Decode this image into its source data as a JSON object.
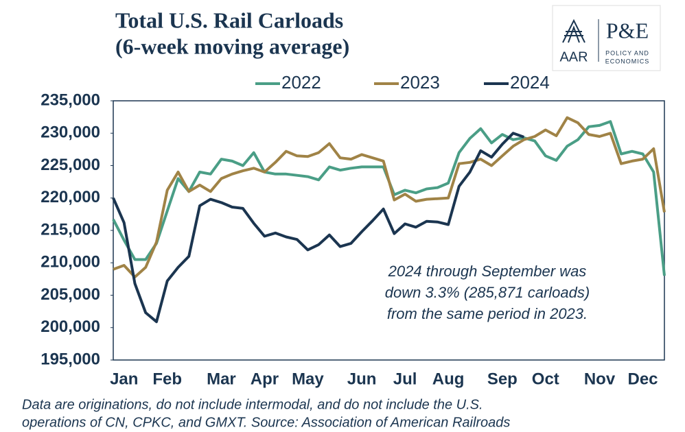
{
  "chart_data": {
    "type": "line",
    "title": "Total U.S. Rail Carloads",
    "subtitle": "(6-week moving average)",
    "logo": [
      "AAR",
      "P&E",
      "POLICY AND",
      "ECONOMICS"
    ],
    "annotation": [
      "2024 through September was",
      "down 3.3% (285,871 carloads)",
      "from the same period in 2023."
    ],
    "footnote": [
      "Data are originations, do not include intermodal, and do not include the U.S.",
      "operations of CN, CPKC, and GMXT. Source: Association of American Railroads"
    ],
    "categories": [
      null,
      "Jan",
      null,
      null,
      null,
      "Feb",
      null,
      null,
      null,
      null,
      "Mar",
      null,
      null,
      null,
      "Apr",
      null,
      null,
      null,
      "May",
      null,
      null,
      null,
      null,
      "Jun",
      null,
      null,
      null,
      "Jul",
      null,
      null,
      null,
      "Aug",
      null,
      null,
      null,
      null,
      "Sep",
      null,
      null,
      null,
      "Oct",
      null,
      null,
      null,
      null,
      "Nov",
      null,
      null,
      null,
      "Dec",
      null,
      null
    ],
    "series": [
      {
        "name": "2022",
        "color": "#4a9e86",
        "values": [
          216700,
          213500,
          210500,
          210500,
          213000,
          218000,
          223000,
          221000,
          224000,
          223700,
          226000,
          225700,
          225000,
          227000,
          224000,
          223700,
          223700,
          223500,
          223300,
          222800,
          224800,
          224300,
          224600,
          224800,
          224800,
          224800,
          220500,
          221200,
          220800,
          221400,
          221600,
          222300,
          227000,
          229200,
          230700,
          228500,
          229800,
          229000,
          229300,
          228800,
          226500,
          225800,
          228000,
          229000,
          231000,
          231200,
          231800,
          226800,
          227200,
          226800,
          224000,
          208000
        ]
      },
      {
        "name": "2023",
        "color": "#a08346",
        "values": [
          209000,
          209600,
          207800,
          209300,
          213200,
          221200,
          224000,
          221000,
          222000,
          221000,
          223000,
          223700,
          224200,
          224600,
          224000,
          225500,
          227200,
          226500,
          226400,
          227000,
          228400,
          226200,
          226000,
          226700,
          226200,
          225700,
          219700,
          220600,
          219500,
          219800,
          219900,
          220000,
          225300,
          225500,
          226000,
          225000,
          226500,
          228000,
          229000,
          229500,
          230500,
          229600,
          232400,
          231600,
          229800,
          229500,
          230000,
          225300,
          225700,
          226000,
          227600,
          217800
        ]
      },
      {
        "name": "2024",
        "color": "#1b3550",
        "values": [
          220000,
          216200,
          206800,
          202300,
          200900,
          207200,
          209300,
          211000,
          218800,
          219800,
          219300,
          218600,
          218400,
          216100,
          214100,
          214600,
          214000,
          213600,
          212000,
          212800,
          214300,
          212500,
          213000,
          214800,
          216500,
          218300,
          214500,
          216000,
          215500,
          216400,
          216300,
          215900,
          221800,
          224000,
          227300,
          226300,
          228300,
          230000,
          229400,
          null,
          null,
          null,
          null,
          null,
          null,
          null,
          null,
          null,
          null,
          null,
          null,
          null
        ]
      }
    ],
    "ylim": [
      195000,
      235000
    ],
    "yticks": [
      {
        "value": 195000,
        "label": "195,000"
      },
      {
        "value": 200000,
        "label": "200,000"
      },
      {
        "value": 205000,
        "label": "205,000"
      },
      {
        "value": 210000,
        "label": "210,000"
      },
      {
        "value": 215000,
        "label": "215,000"
      },
      {
        "value": 220000,
        "label": "220,000"
      },
      {
        "value": 225000,
        "label": "225,000"
      },
      {
        "value": 230000,
        "label": "230,000"
      },
      {
        "value": 235000,
        "label": "235,000"
      }
    ],
    "grid": false
  }
}
